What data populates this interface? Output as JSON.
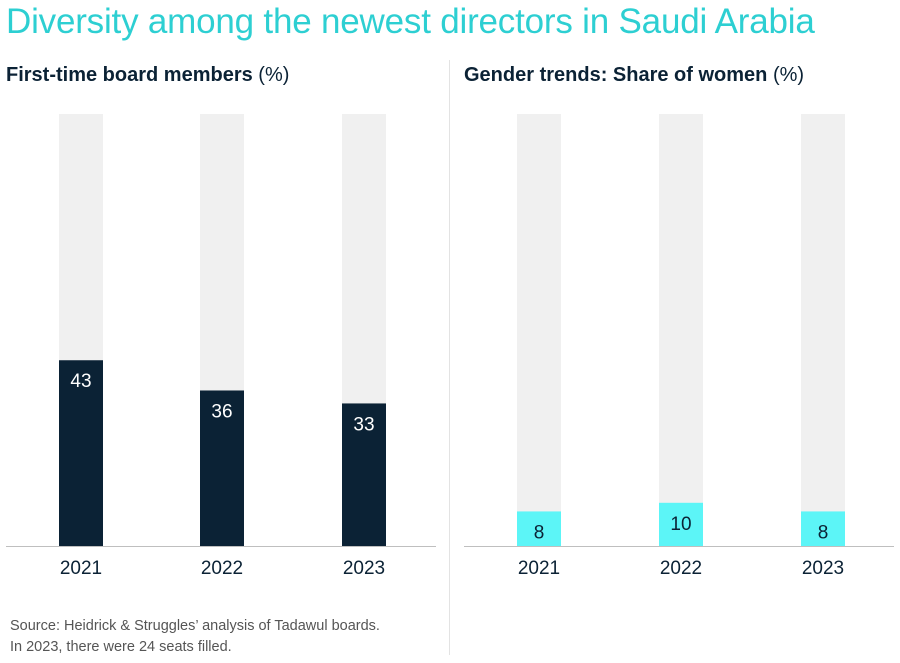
{
  "title": "Diversity among the newest directors in Saudi Arabia",
  "colors": {
    "title": "#2dcfd2",
    "track": "#f0f0f0",
    "navy_bar": "#0b2235",
    "cyan_bar": "#5cf5f7",
    "axis": "#bfbfbf",
    "text": "#0b2235"
  },
  "chart_data": [
    {
      "type": "bar",
      "title_bold": "First-time board members",
      "title_unit": "(%)",
      "categories": [
        "2021",
        "2022",
        "2023"
      ],
      "values": [
        43,
        36,
        33
      ],
      "ylim": [
        0,
        100
      ],
      "bar_color": "#0b2235",
      "label_color": "#ffffff",
      "track": true
    },
    {
      "type": "bar",
      "title_bold": "Gender trends: Share of women",
      "title_unit": "(%)",
      "categories": [
        "2021",
        "2022",
        "2023"
      ],
      "values": [
        8,
        10,
        8
      ],
      "ylim": [
        0,
        100
      ],
      "bar_color": "#5cf5f7",
      "label_color": "#0b2235",
      "track": true
    }
  ],
  "source_lines": [
    "Source: Heidrick & Struggles’ analysis of Tadawul boards.",
    "In 2023, there were 24 seats filled."
  ]
}
